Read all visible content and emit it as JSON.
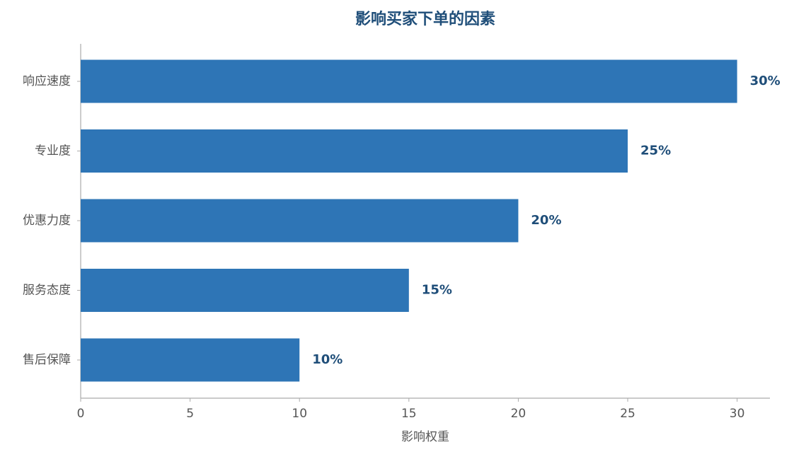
{
  "chart_data": {
    "type": "barh",
    "title": "影响买家下单的因素",
    "x_label": "影响权重",
    "categories": [
      "响应速度",
      "专业度",
      "优惠力度",
      "服务态度",
      "售后保障"
    ],
    "values": [
      30,
      25,
      20,
      15,
      10
    ],
    "value_labels": [
      "30%",
      "25%",
      "20%",
      "15%",
      "10%"
    ],
    "color": "#2e75b6",
    "xlim": [
      0,
      31.5
    ],
    "xticks": [
      0,
      5,
      10,
      15,
      20,
      25,
      30
    ],
    "grid": false
  }
}
